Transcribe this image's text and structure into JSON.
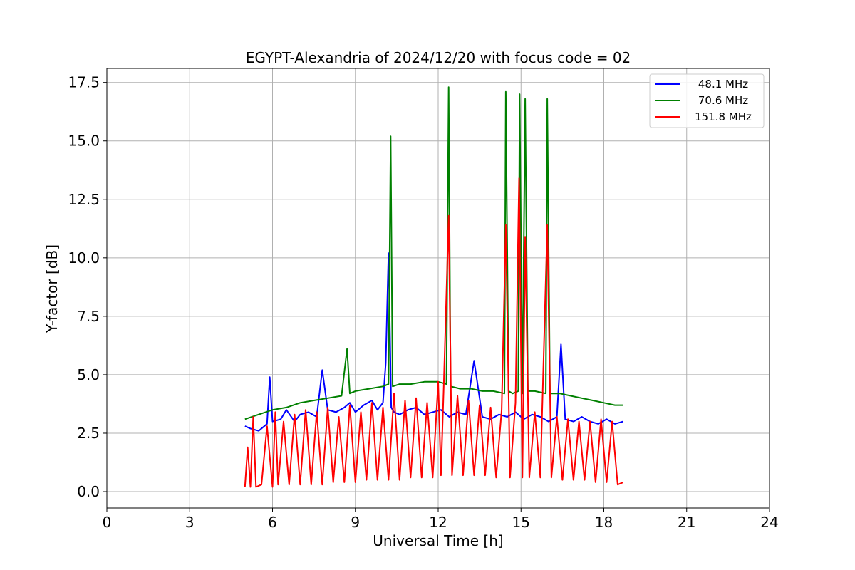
{
  "chart_data": {
    "type": "line",
    "title": "EGYPT-Alexandria of 2024/12/20 with focus code = 02",
    "xlabel": "Universal Time [h]",
    "ylabel": "Y-factor [dB]",
    "xlim": [
      0,
      24
    ],
    "ylim": [
      -0.7,
      18.1
    ],
    "x_ticks": [
      0,
      3,
      6,
      9,
      12,
      15,
      18,
      21,
      24
    ],
    "x_tick_labels": [
      "0",
      "3",
      "6",
      "9",
      "12",
      "15",
      "18",
      "21",
      "24"
    ],
    "y_ticks": [
      0.0,
      2.5,
      5.0,
      7.5,
      10.0,
      12.5,
      15.0,
      17.5
    ],
    "y_tick_labels": [
      "0.0",
      "2.5",
      "5.0",
      "7.5",
      "10.0",
      "12.5",
      "15.0",
      "17.5"
    ],
    "grid": true,
    "legend_position": "top-right",
    "series": [
      {
        "name": "48.1 MHz",
        "color": "#0000ff",
        "x": [
          5.0,
          5.2,
          5.5,
          5.8,
          5.9,
          6.0,
          6.3,
          6.5,
          6.8,
          7.0,
          7.3,
          7.6,
          7.8,
          8.0,
          8.3,
          8.6,
          8.8,
          9.0,
          9.3,
          9.6,
          9.8,
          10.0,
          10.1,
          10.2,
          10.25,
          10.3,
          10.4,
          10.6,
          10.9,
          11.2,
          11.5,
          11.8,
          12.1,
          12.4,
          12.7,
          13.0,
          13.3,
          13.6,
          13.9,
          14.2,
          14.5,
          14.8,
          15.1,
          15.4,
          15.7,
          16.0,
          16.3,
          16.45,
          16.6,
          16.9,
          17.2,
          17.5,
          17.8,
          18.1,
          18.4,
          18.7
        ],
        "y": [
          2.8,
          2.7,
          2.6,
          2.9,
          4.9,
          3.0,
          3.1,
          3.5,
          3.0,
          3.3,
          3.4,
          3.2,
          5.2,
          3.5,
          3.4,
          3.6,
          3.8,
          3.4,
          3.7,
          3.9,
          3.5,
          3.8,
          5.5,
          10.2,
          7.0,
          3.6,
          3.4,
          3.3,
          3.5,
          3.6,
          3.3,
          3.4,
          3.5,
          3.2,
          3.4,
          3.3,
          5.6,
          3.2,
          3.1,
          3.3,
          3.2,
          3.4,
          3.1,
          3.3,
          3.2,
          3.0,
          3.2,
          6.3,
          3.1,
          3.0,
          3.2,
          3.0,
          2.9,
          3.1,
          2.9,
          3.0
        ]
      },
      {
        "name": "70.6 MHz",
        "color": "#008000",
        "x": [
          5.0,
          5.5,
          6.0,
          6.5,
          7.0,
          7.5,
          8.0,
          8.5,
          8.7,
          8.8,
          9.0,
          9.5,
          10.0,
          10.2,
          10.28,
          10.35,
          10.6,
          11.0,
          11.5,
          12.0,
          12.3,
          12.38,
          12.45,
          12.8,
          13.2,
          13.6,
          14.0,
          14.4,
          14.45,
          14.55,
          14.7,
          14.9,
          14.95,
          15.05,
          15.15,
          15.25,
          15.5,
          15.9,
          15.95,
          16.05,
          16.4,
          16.8,
          17.2,
          17.6,
          18.0,
          18.4,
          18.7
        ],
        "y": [
          3.1,
          3.3,
          3.5,
          3.6,
          3.8,
          3.9,
          4.0,
          4.1,
          6.1,
          4.2,
          4.3,
          4.4,
          4.5,
          4.6,
          15.2,
          4.5,
          4.6,
          4.6,
          4.7,
          4.7,
          4.6,
          17.3,
          4.5,
          4.4,
          4.4,
          4.3,
          4.3,
          4.2,
          17.1,
          4.3,
          4.2,
          4.3,
          17.0,
          4.2,
          16.8,
          4.3,
          4.3,
          4.2,
          16.8,
          4.2,
          4.2,
          4.1,
          4.0,
          3.9,
          3.8,
          3.7,
          3.7
        ]
      },
      {
        "name": "151.8 MHz",
        "color": "#ff0000",
        "x": [
          5.0,
          5.1,
          5.2,
          5.3,
          5.4,
          5.6,
          5.8,
          6.0,
          6.1,
          6.2,
          6.4,
          6.6,
          6.8,
          7.0,
          7.2,
          7.4,
          7.6,
          7.8,
          8.0,
          8.2,
          8.4,
          8.6,
          8.8,
          9.0,
          9.2,
          9.4,
          9.6,
          9.8,
          10.0,
          10.2,
          10.4,
          10.6,
          10.8,
          11.0,
          11.2,
          11.4,
          11.6,
          11.8,
          12.0,
          12.1,
          12.2,
          12.38,
          12.5,
          12.7,
          12.9,
          13.1,
          13.3,
          13.5,
          13.7,
          13.9,
          14.1,
          14.3,
          14.45,
          14.6,
          14.8,
          14.93,
          15.05,
          15.15,
          15.3,
          15.5,
          15.7,
          15.95,
          16.1,
          16.3,
          16.5,
          16.7,
          16.9,
          17.1,
          17.3,
          17.5,
          17.7,
          17.9,
          18.1,
          18.3,
          18.5,
          18.7
        ],
        "y": [
          0.2,
          1.9,
          0.2,
          3.2,
          0.2,
          0.3,
          2.8,
          0.2,
          3.4,
          0.3,
          3.0,
          0.3,
          3.3,
          0.3,
          3.5,
          0.3,
          3.4,
          0.3,
          3.6,
          0.4,
          3.2,
          0.4,
          3.7,
          0.4,
          3.4,
          0.5,
          3.8,
          0.5,
          3.6,
          0.5,
          4.2,
          0.5,
          3.9,
          0.6,
          4.0,
          0.6,
          3.8,
          0.6,
          4.7,
          0.7,
          4.5,
          11.8,
          0.7,
          4.1,
          0.7,
          3.9,
          0.7,
          3.7,
          0.7,
          3.6,
          0.6,
          3.5,
          11.4,
          0.6,
          3.8,
          13.4,
          0.6,
          10.9,
          0.6,
          3.4,
          0.6,
          11.4,
          0.6,
          3.2,
          0.5,
          3.1,
          0.5,
          3.0,
          0.5,
          3.0,
          0.4,
          3.1,
          0.4,
          3.0,
          0.3,
          0.4
        ]
      }
    ]
  }
}
